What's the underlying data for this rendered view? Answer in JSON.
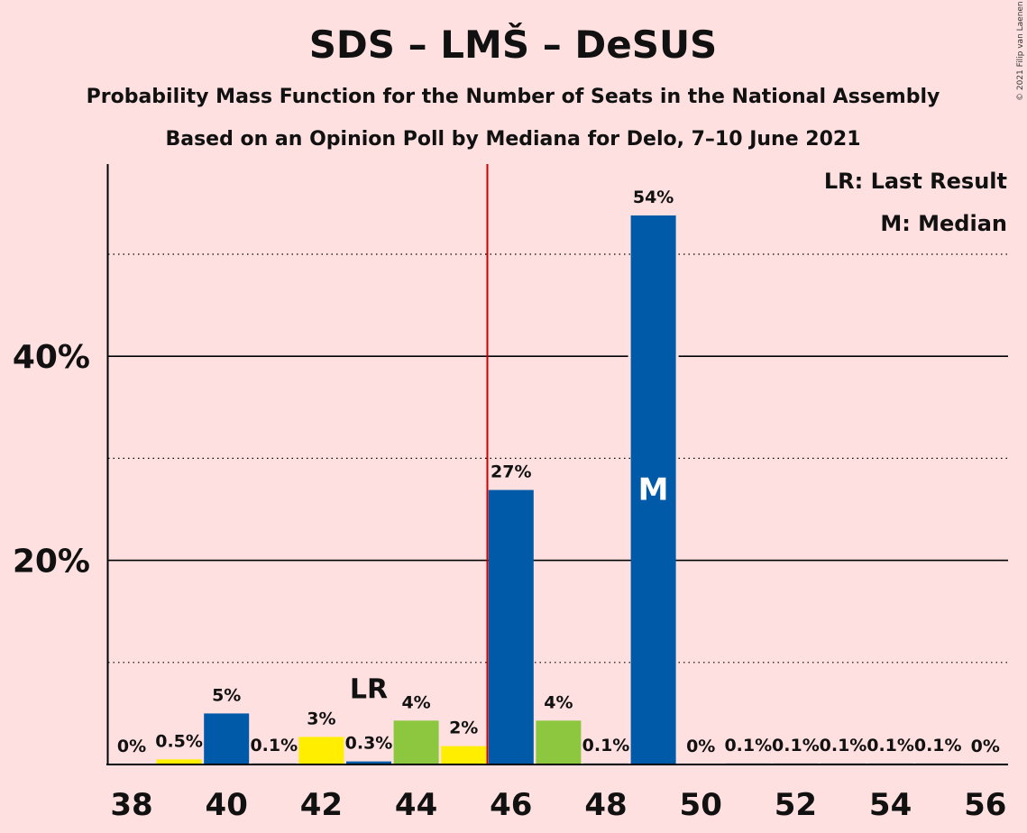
{
  "copyright": "© 2021 Filip van Laenen",
  "chart_data": {
    "type": "bar",
    "title": "SDS – LMŠ – DeSUS",
    "subtitle": "Probability Mass Function for the Number of Seats in the National Assembly",
    "subtitle2": "Based on an Opinion Poll by Mediana for Delo, 7–10 June 2021",
    "xlabel": "",
    "ylabel": "",
    "ylim": [
      0,
      58
    ],
    "y_ticks_labeled": [
      {
        "value": 20,
        "label": "20%"
      },
      {
        "value": 40,
        "label": "40%"
      }
    ],
    "y_grid_dotted": [
      10,
      30,
      50
    ],
    "x_ticks": [
      "38",
      "40",
      "42",
      "44",
      "46",
      "48",
      "50",
      "52",
      "54",
      "56"
    ],
    "majority_line": 45.5,
    "legend": [
      {
        "text": "LR: Last Result"
      },
      {
        "text": "M: Median"
      }
    ],
    "last_result": {
      "seat": 43,
      "label": "LR"
    },
    "median": {
      "seat": 49,
      "label": "M"
    },
    "colors": {
      "blue": "#005aa8",
      "yellow": "#ffee00",
      "green": "#8dc63f",
      "majority": "#cc0000"
    },
    "bars": [
      {
        "seat": 38,
        "value": 0,
        "label": "0%",
        "color": "blue"
      },
      {
        "seat": 39,
        "value": 0.5,
        "label": "0.5%",
        "color": "yellow"
      },
      {
        "seat": 40,
        "value": 5,
        "label": "5%",
        "color": "blue"
      },
      {
        "seat": 41,
        "value": 0.1,
        "label": "0.1%",
        "color": "blue"
      },
      {
        "seat": 42,
        "value": 2.7,
        "label": "3%",
        "color": "yellow"
      },
      {
        "seat": 43,
        "value": 0.3,
        "label": "0.3%",
        "color": "blue"
      },
      {
        "seat": 44,
        "value": 4.3,
        "label": "4%",
        "color": "green"
      },
      {
        "seat": 45,
        "value": 1.8,
        "label": "2%",
        "color": "yellow"
      },
      {
        "seat": 46,
        "value": 26.9,
        "label": "27%",
        "color": "blue"
      },
      {
        "seat": 47,
        "value": 4.3,
        "label": "4%",
        "color": "green"
      },
      {
        "seat": 48,
        "value": 0.1,
        "label": "0.1%",
        "color": "blue"
      },
      {
        "seat": 49,
        "value": 53.8,
        "label": "54%",
        "color": "blue"
      },
      {
        "seat": 50,
        "value": 0,
        "label": "0%",
        "color": "blue"
      },
      {
        "seat": 51,
        "value": 0.1,
        "label": "0.1%",
        "color": "blue"
      },
      {
        "seat": 52,
        "value": 0.1,
        "label": "0.1%",
        "color": "blue"
      },
      {
        "seat": 53,
        "value": 0.1,
        "label": "0.1%",
        "color": "blue"
      },
      {
        "seat": 54,
        "value": 0.1,
        "label": "0.1%",
        "color": "blue"
      },
      {
        "seat": 55,
        "value": 0.1,
        "label": "0.1%",
        "color": "blue"
      },
      {
        "seat": 56,
        "value": 0,
        "label": "0%",
        "color": "blue"
      }
    ]
  }
}
